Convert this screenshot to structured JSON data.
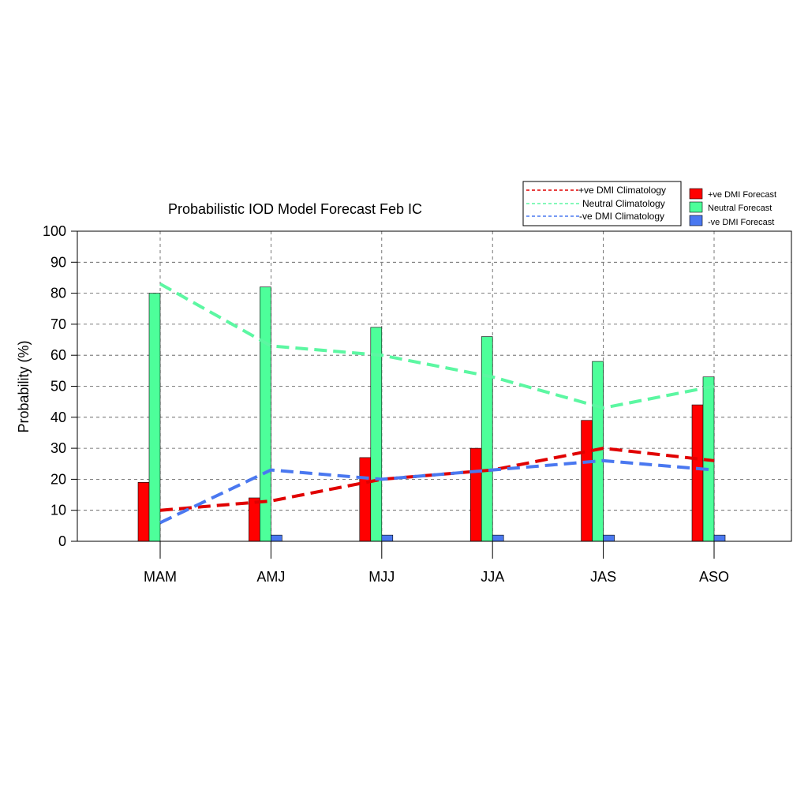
{
  "chart_data": {
    "type": "bar",
    "title": "Probabilistic IOD Model Forecast  Feb IC",
    "xlabel": "",
    "ylabel": "Probability (%)",
    "ylim": [
      0,
      100
    ],
    "yticks": [
      0,
      10,
      20,
      30,
      40,
      50,
      60,
      70,
      80,
      90,
      100
    ],
    "grid": true,
    "categories": [
      "MAM",
      "AMJ",
      "MJJ",
      "JJA",
      "JAS",
      "ASO"
    ],
    "series": [
      {
        "name": "+ve DMI Forecast",
        "color": "#ff0000",
        "values": [
          19,
          14,
          27,
          30,
          39,
          44
        ]
      },
      {
        "name": "Neutral Forecast",
        "color": "#4dff9a",
        "values": [
          80,
          82,
          69,
          66,
          58,
          53
        ]
      },
      {
        "name": "-ve DMI Forecast",
        "color": "#4a78f0",
        "values": [
          0,
          2,
          2,
          2,
          2,
          2
        ]
      }
    ],
    "lines": [
      {
        "name": "+ve DMI Climatology",
        "color": "#e00000",
        "values": [
          10,
          13,
          20,
          23,
          30,
          26
        ]
      },
      {
        "name": "Neutral Climatology",
        "color": "#5cf7a2",
        "values": [
          83,
          63,
          60,
          53,
          43,
          50
        ]
      },
      {
        "name": "-ve DMI Climatology",
        "color": "#4a78f0",
        "values": [
          6,
          23,
          20,
          23,
          26,
          23
        ]
      }
    ],
    "legend_lines_position": "top-right",
    "legend_bars_position": "top-right"
  }
}
